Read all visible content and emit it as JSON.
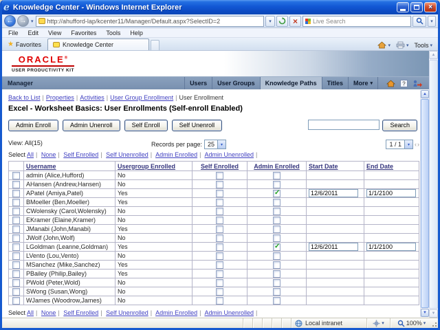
{
  "window": {
    "title": "Knowledge Center - Windows Internet Explorer"
  },
  "address_bar": {
    "url": "http://ahufford-lap/kcenter11/Manager/Default.aspx?SelectID=2",
    "search_placeholder": "Live Search"
  },
  "menu_bar": {
    "items": [
      "File",
      "Edit",
      "View",
      "Favorites",
      "Tools",
      "Help"
    ]
  },
  "tab_bar": {
    "favorites_label": "Favorites",
    "tab_title": "Knowledge Center",
    "tools_label": "Tools"
  },
  "banner": {
    "brand": "ORACLE",
    "product": "USER PRODUCTIVITY KIT"
  },
  "manager_bar": {
    "title": "Manager",
    "tabs": [
      {
        "label": "Users",
        "selected": false,
        "dropdown": false
      },
      {
        "label": "User Groups",
        "selected": false,
        "dropdown": false
      },
      {
        "label": "Knowledge Paths",
        "selected": true,
        "dropdown": false
      },
      {
        "label": "Titles",
        "selected": false,
        "dropdown": false
      },
      {
        "label": "More",
        "selected": false,
        "dropdown": true
      }
    ]
  },
  "page": {
    "nav_links": [
      "Back to List",
      "Properties",
      "Activities",
      "User Group Enrollment"
    ],
    "nav_current": "User Enrollment",
    "title": "Excel - Worksheet Basics: User Enrollments (Self-enroll Enabled)",
    "action_buttons": [
      "Admin Enroll",
      "Admin Unenroll",
      "Self Enroll",
      "Self Unenroll"
    ],
    "search_button_label": "Search",
    "view_label": "View: All(15)",
    "records_per_page_label": "Records per page:",
    "records_per_page_value": "25",
    "page_indicator": "1 / 1",
    "select_label": "Select",
    "select_links": [
      "All",
      "None",
      "Self Enrolled",
      "Self Unenrolled",
      "Admin Enrolled",
      "Admin Unenrolled"
    ]
  },
  "table": {
    "headers": [
      "Username",
      "Usergroup Enrolled",
      "Self Enrolled",
      "Admin Enrolled",
      "Start Date",
      "End Date"
    ],
    "rows": [
      {
        "username": "admin (Alice,Hufford)",
        "usergroup_enrolled": "No",
        "self_enrolled": false,
        "admin_enrolled": false,
        "start_date": "",
        "end_date": ""
      },
      {
        "username": "AHansen (Andrew,Hansen)",
        "usergroup_enrolled": "No",
        "self_enrolled": false,
        "admin_enrolled": false,
        "start_date": "",
        "end_date": ""
      },
      {
        "username": "APatel (Amiya,Patel)",
        "usergroup_enrolled": "Yes",
        "self_enrolled": false,
        "admin_enrolled": true,
        "start_date": "12/6/2011",
        "end_date": "1/1/2100"
      },
      {
        "username": "BMoeller (Ben,Moeller)",
        "usergroup_enrolled": "Yes",
        "self_enrolled": false,
        "admin_enrolled": false,
        "start_date": "",
        "end_date": ""
      },
      {
        "username": "CWolensky (Carol,Wolensky)",
        "usergroup_enrolled": "No",
        "self_enrolled": false,
        "admin_enrolled": false,
        "start_date": "",
        "end_date": ""
      },
      {
        "username": "EKramer (Elaine,Kramer)",
        "usergroup_enrolled": "No",
        "self_enrolled": false,
        "admin_enrolled": false,
        "start_date": "",
        "end_date": ""
      },
      {
        "username": "JManabi (John,Manabi)",
        "usergroup_enrolled": "Yes",
        "self_enrolled": false,
        "admin_enrolled": false,
        "start_date": "",
        "end_date": ""
      },
      {
        "username": "JWolf (John,Wolf)",
        "usergroup_enrolled": "No",
        "self_enrolled": false,
        "admin_enrolled": false,
        "start_date": "",
        "end_date": ""
      },
      {
        "username": "LGoldman (Leanne,Goldman)",
        "usergroup_enrolled": "Yes",
        "self_enrolled": false,
        "admin_enrolled": true,
        "start_date": "12/6/2011",
        "end_date": "1/1/2100"
      },
      {
        "username": "LVento (Lou,Vento)",
        "usergroup_enrolled": "No",
        "self_enrolled": false,
        "admin_enrolled": false,
        "start_date": "",
        "end_date": ""
      },
      {
        "username": "MSanchez (Mike,Sanchez)",
        "usergroup_enrolled": "Yes",
        "self_enrolled": false,
        "admin_enrolled": false,
        "start_date": "",
        "end_date": ""
      },
      {
        "username": "PBailey (Philip,Bailey)",
        "usergroup_enrolled": "Yes",
        "self_enrolled": false,
        "admin_enrolled": false,
        "start_date": "",
        "end_date": ""
      },
      {
        "username": "PWold (Peter,Wold)",
        "usergroup_enrolled": "No",
        "self_enrolled": false,
        "admin_enrolled": false,
        "start_date": "",
        "end_date": ""
      },
      {
        "username": "SWong (Susan,Wong)",
        "usergroup_enrolled": "No",
        "self_enrolled": false,
        "admin_enrolled": false,
        "start_date": "",
        "end_date": ""
      },
      {
        "username": "WJames (Woodrow,James)",
        "usergroup_enrolled": "No",
        "self_enrolled": false,
        "admin_enrolled": false,
        "start_date": "",
        "end_date": ""
      }
    ]
  },
  "status_bar": {
    "zone_label": "Local intranet",
    "zoom_level": "100%"
  }
}
